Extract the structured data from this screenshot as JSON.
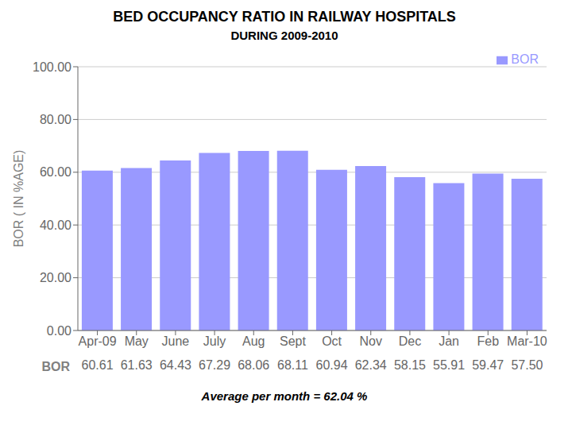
{
  "chart_data": {
    "type": "bar",
    "title": "BED OCCUPANCY RATIO IN RAILWAY HOSPITALS",
    "subtitle": "DURING 2009-2010",
    "categories": [
      "Apr-09",
      "May",
      "June",
      "July",
      "Aug",
      "Sept",
      "Oct",
      "Nov",
      "Dec",
      "Jan",
      "Feb",
      "Mar-10"
    ],
    "series": [
      {
        "name": "BOR",
        "color": "#9999FF",
        "values": [
          60.61,
          61.63,
          64.43,
          67.29,
          68.06,
          68.11,
          60.94,
          62.34,
          58.15,
          55.91,
          59.47,
          57.5
        ],
        "value_labels": [
          "60.61",
          "61.63",
          "64.43",
          "67.29",
          "68.06",
          "68.11",
          "60.94",
          "62.34",
          "58.15",
          "55.91",
          "59.47",
          "57.50"
        ]
      }
    ],
    "ylabel": "BOR ( IN %AGE)",
    "ylim": [
      0,
      100
    ],
    "yticks": [
      {
        "value": 0,
        "label": "0.00"
      },
      {
        "value": 20,
        "label": "20.00"
      },
      {
        "value": 40,
        "label": "40.00"
      },
      {
        "value": 60,
        "label": "60.00"
      },
      {
        "value": 80,
        "label": "80.00"
      },
      {
        "value": 100,
        "label": "100.00"
      }
    ],
    "grid": true,
    "legend": "upper right",
    "annotation": "Average per month  =  62.04 %"
  }
}
